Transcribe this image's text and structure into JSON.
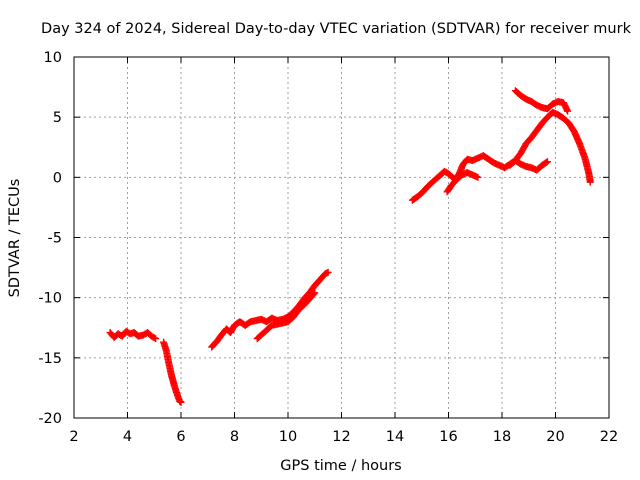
{
  "chart_data": {
    "type": "scatter",
    "title": "Day 324 of 2024, Sidereal Day-to-day VTEC variation (SDTVAR) for receiver murk",
    "xlabel": "GPS time / hours",
    "ylabel": "SDTVAR / TECUs",
    "xlim": [
      2,
      22
    ],
    "ylim": [
      -20,
      10
    ],
    "xticks": [
      2,
      4,
      6,
      8,
      10,
      12,
      14,
      16,
      18,
      20,
      22
    ],
    "yticks": [
      -20,
      -15,
      -10,
      -5,
      0,
      5,
      10
    ],
    "grid": true,
    "marker_color": "#ff0000",
    "marker": "plus",
    "segments": [
      [
        [
          3.35,
          -12.9
        ],
        [
          3.5,
          -13.3
        ],
        [
          3.65,
          -13.0
        ],
        [
          3.8,
          -13.2
        ],
        [
          3.95,
          -12.8
        ],
        [
          4.1,
          -13.0
        ],
        [
          4.25,
          -12.9
        ],
        [
          4.4,
          -13.2
        ],
        [
          4.6,
          -13.1
        ],
        [
          4.75,
          -12.9
        ],
        [
          4.9,
          -13.2
        ],
        [
          5.05,
          -13.4
        ]
      ],
      [
        [
          5.35,
          -13.7
        ],
        [
          5.45,
          -14.4
        ],
        [
          5.55,
          -15.5
        ],
        [
          5.65,
          -16.5
        ],
        [
          5.75,
          -17.3
        ],
        [
          5.85,
          -18.0
        ],
        [
          5.95,
          -18.6
        ],
        [
          6.0,
          -18.7
        ]
      ],
      [
        [
          7.15,
          -14.1
        ],
        [
          7.35,
          -13.6
        ],
        [
          7.55,
          -13.0
        ],
        [
          7.7,
          -12.6
        ],
        [
          7.85,
          -12.9
        ],
        [
          8.0,
          -12.3
        ],
        [
          8.2,
          -12.0
        ],
        [
          8.4,
          -12.3
        ],
        [
          8.6,
          -12.0
        ],
        [
          8.8,
          -11.9
        ],
        [
          9.0,
          -11.8
        ],
        [
          9.2,
          -12.0
        ],
        [
          9.4,
          -11.7
        ],
        [
          9.6,
          -11.9
        ],
        [
          9.8,
          -11.8
        ],
        [
          10.0,
          -11.6
        ],
        [
          10.2,
          -11.2
        ],
        [
          10.4,
          -10.7
        ],
        [
          10.6,
          -10.1
        ],
        [
          10.8,
          -9.6
        ],
        [
          11.0,
          -9.0
        ],
        [
          11.2,
          -8.5
        ],
        [
          11.4,
          -8.0
        ],
        [
          11.5,
          -7.9
        ]
      ],
      [
        [
          8.85,
          -13.4
        ],
        [
          9.0,
          -13.1
        ],
        [
          9.2,
          -12.7
        ],
        [
          9.4,
          -12.3
        ],
        [
          9.6,
          -12.2
        ],
        [
          9.8,
          -12.1
        ],
        [
          10.0,
          -12.0
        ],
        [
          10.2,
          -11.6
        ],
        [
          10.4,
          -11.0
        ],
        [
          10.6,
          -10.6
        ],
        [
          10.8,
          -10.1
        ],
        [
          11.0,
          -9.6
        ]
      ],
      [
        [
          14.65,
          -1.9
        ],
        [
          14.85,
          -1.6
        ],
        [
          15.05,
          -1.2
        ],
        [
          15.25,
          -0.7
        ],
        [
          15.45,
          -0.3
        ],
        [
          15.65,
          0.1
        ],
        [
          15.85,
          0.5
        ],
        [
          16.0,
          0.3
        ],
        [
          16.15,
          0.0
        ],
        [
          16.3,
          -0.2
        ],
        [
          16.5,
          0.2
        ],
        [
          16.7,
          0.4
        ],
        [
          16.9,
          0.2
        ],
        [
          17.1,
          0.0
        ]
      ],
      [
        [
          15.95,
          -1.2
        ],
        [
          16.1,
          -0.7
        ],
        [
          16.25,
          -0.3
        ],
        [
          16.4,
          0.3
        ],
        [
          16.55,
          1.1
        ],
        [
          16.7,
          1.5
        ],
        [
          16.9,
          1.4
        ],
        [
          17.1,
          1.6
        ],
        [
          17.3,
          1.8
        ],
        [
          17.5,
          1.5
        ],
        [
          17.7,
          1.2
        ],
        [
          17.9,
          1.0
        ],
        [
          18.1,
          0.8
        ],
        [
          18.3,
          1.1
        ],
        [
          18.5,
          1.4
        ],
        [
          18.7,
          1.1
        ],
        [
          18.9,
          0.9
        ],
        [
          19.1,
          0.8
        ],
        [
          19.3,
          0.6
        ],
        [
          19.5,
          1.0
        ],
        [
          19.7,
          1.3
        ]
      ],
      [
        [
          18.3,
          1.0
        ],
        [
          18.5,
          1.4
        ],
        [
          18.7,
          2.0
        ],
        [
          18.9,
          2.8
        ],
        [
          19.1,
          3.3
        ],
        [
          19.3,
          3.9
        ],
        [
          19.5,
          4.5
        ],
        [
          19.7,
          5.0
        ],
        [
          19.9,
          5.4
        ],
        [
          20.1,
          5.2
        ],
        [
          20.3,
          4.9
        ],
        [
          20.5,
          4.5
        ],
        [
          20.7,
          3.8
        ],
        [
          20.9,
          2.8
        ],
        [
          21.1,
          1.6
        ],
        [
          21.25,
          0.3
        ],
        [
          21.3,
          -0.4
        ]
      ],
      [
        [
          18.5,
          7.2
        ],
        [
          18.7,
          6.8
        ],
        [
          18.9,
          6.5
        ],
        [
          19.1,
          6.3
        ],
        [
          19.3,
          6.0
        ],
        [
          19.5,
          5.8
        ],
        [
          19.7,
          5.7
        ],
        [
          19.9,
          6.1
        ],
        [
          20.1,
          6.3
        ],
        [
          20.3,
          6.2
        ],
        [
          20.45,
          5.5
        ]
      ]
    ]
  }
}
